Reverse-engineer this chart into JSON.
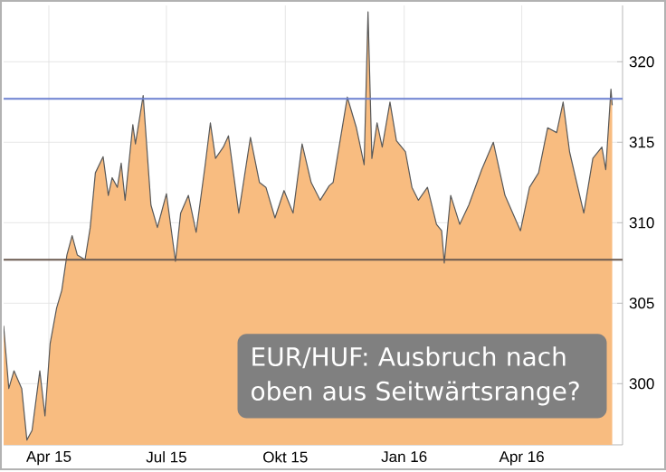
{
  "chart_data": {
    "type": "area",
    "color": "#f8bc80",
    "x": [
      "2015-02-25",
      "2015-03-01",
      "2015-03-05",
      "2015-03-11",
      "2015-03-15",
      "2015-03-19",
      "2015-03-25",
      "2015-03-29",
      "2015-04-02",
      "2015-04-07",
      "2015-04-11",
      "2015-04-15",
      "2015-04-19",
      "2015-04-23",
      "2015-04-29",
      "2015-05-03",
      "2015-05-07",
      "2015-05-13",
      "2015-05-17",
      "2015-05-20",
      "2015-05-24",
      "2015-05-27",
      "2015-05-30",
      "2015-06-05",
      "2015-06-07",
      "2015-06-13",
      "2015-06-19",
      "2015-06-24",
      "2015-07-01",
      "2015-07-05",
      "2015-07-08",
      "2015-07-12",
      "2015-07-18",
      "2015-07-24",
      "2015-07-31",
      "2015-08-04",
      "2015-08-08",
      "2015-08-14",
      "2015-08-18",
      "2015-08-26",
      "2015-09-04",
      "2015-09-11",
      "2015-09-16",
      "2015-09-23",
      "2015-09-30",
      "2015-10-07",
      "2015-10-14",
      "2015-10-21",
      "2015-10-28",
      "2015-11-04",
      "2015-11-07",
      "2015-11-18",
      "2015-11-25",
      "2015-12-01",
      "2015-12-04",
      "2015-12-07",
      "2015-12-11",
      "2015-12-15",
      "2015-12-21",
      "2015-12-26",
      "2016-01-02",
      "2016-01-07",
      "2016-01-12",
      "2016-01-19",
      "2016-01-26",
      "2016-01-30",
      "2016-02-01",
      "2016-02-06",
      "2016-02-13",
      "2016-02-20",
      "2016-03-01",
      "2016-03-10",
      "2016-03-19",
      "2016-03-31",
      "2016-04-07",
      "2016-04-14",
      "2016-04-21",
      "2016-04-28",
      "2016-05-03",
      "2016-05-08",
      "2016-05-19",
      "2016-05-26",
      "2016-06-02",
      "2016-06-05",
      "2016-06-09",
      "2016-06-10"
    ],
    "values": [
      303.6,
      299.7,
      300.8,
      299.7,
      296.5,
      297.1,
      300.8,
      298.0,
      302.5,
      304.7,
      305.8,
      308.0,
      309.2,
      308.0,
      307.7,
      309.7,
      313.1,
      314.1,
      311.7,
      312.8,
      312.2,
      313.7,
      311.4,
      316.1,
      314.9,
      317.9,
      311.1,
      309.7,
      311.8,
      309.4,
      307.6,
      310.6,
      311.7,
      309.4,
      313.6,
      316.2,
      314.0,
      314.7,
      315.4,
      310.6,
      315.3,
      312.5,
      312.2,
      310.3,
      312.0,
      310.6,
      314.9,
      312.5,
      311.4,
      312.3,
      312.5,
      317.8,
      315.9,
      313.6,
      323.1,
      314.0,
      316.2,
      314.7,
      317.5,
      315.1,
      314.4,
      312.2,
      311.4,
      312.2,
      309.9,
      309.5,
      307.5,
      311.7,
      309.9,
      311.1,
      313.3,
      315.0,
      311.7,
      309.5,
      312.2,
      313.1,
      315.9,
      315.6,
      317.5,
      314.4,
      310.6,
      314.0,
      314.7,
      313.3,
      318.3,
      317.3
    ],
    "xlim": [
      "2015-02-25",
      "2016-06-18"
    ],
    "xticks": [
      {
        "value": "2015-04-01",
        "label": "Apr 15"
      },
      {
        "value": "2015-07-01",
        "label": "Jul 15"
      },
      {
        "value": "2015-10-01",
        "label": "Okt 15"
      },
      {
        "value": "2016-01-01",
        "label": "Jan 16"
      },
      {
        "value": "2016-04-01",
        "label": "Apr 16"
      }
    ],
    "ylim": [
      296.2,
      323.5
    ],
    "yticks": [
      300,
      305,
      310,
      315,
      320
    ],
    "grid": true,
    "ref_lines": [
      {
        "axis": "y",
        "value": 317.7,
        "color": "#6b80d0"
      },
      {
        "axis": "y",
        "value": 307.7,
        "color": "#6a5a50"
      }
    ],
    "annotations": [
      "EUR/HUF: Ausbruch nach oben aus Seitwärtsrange?"
    ]
  }
}
